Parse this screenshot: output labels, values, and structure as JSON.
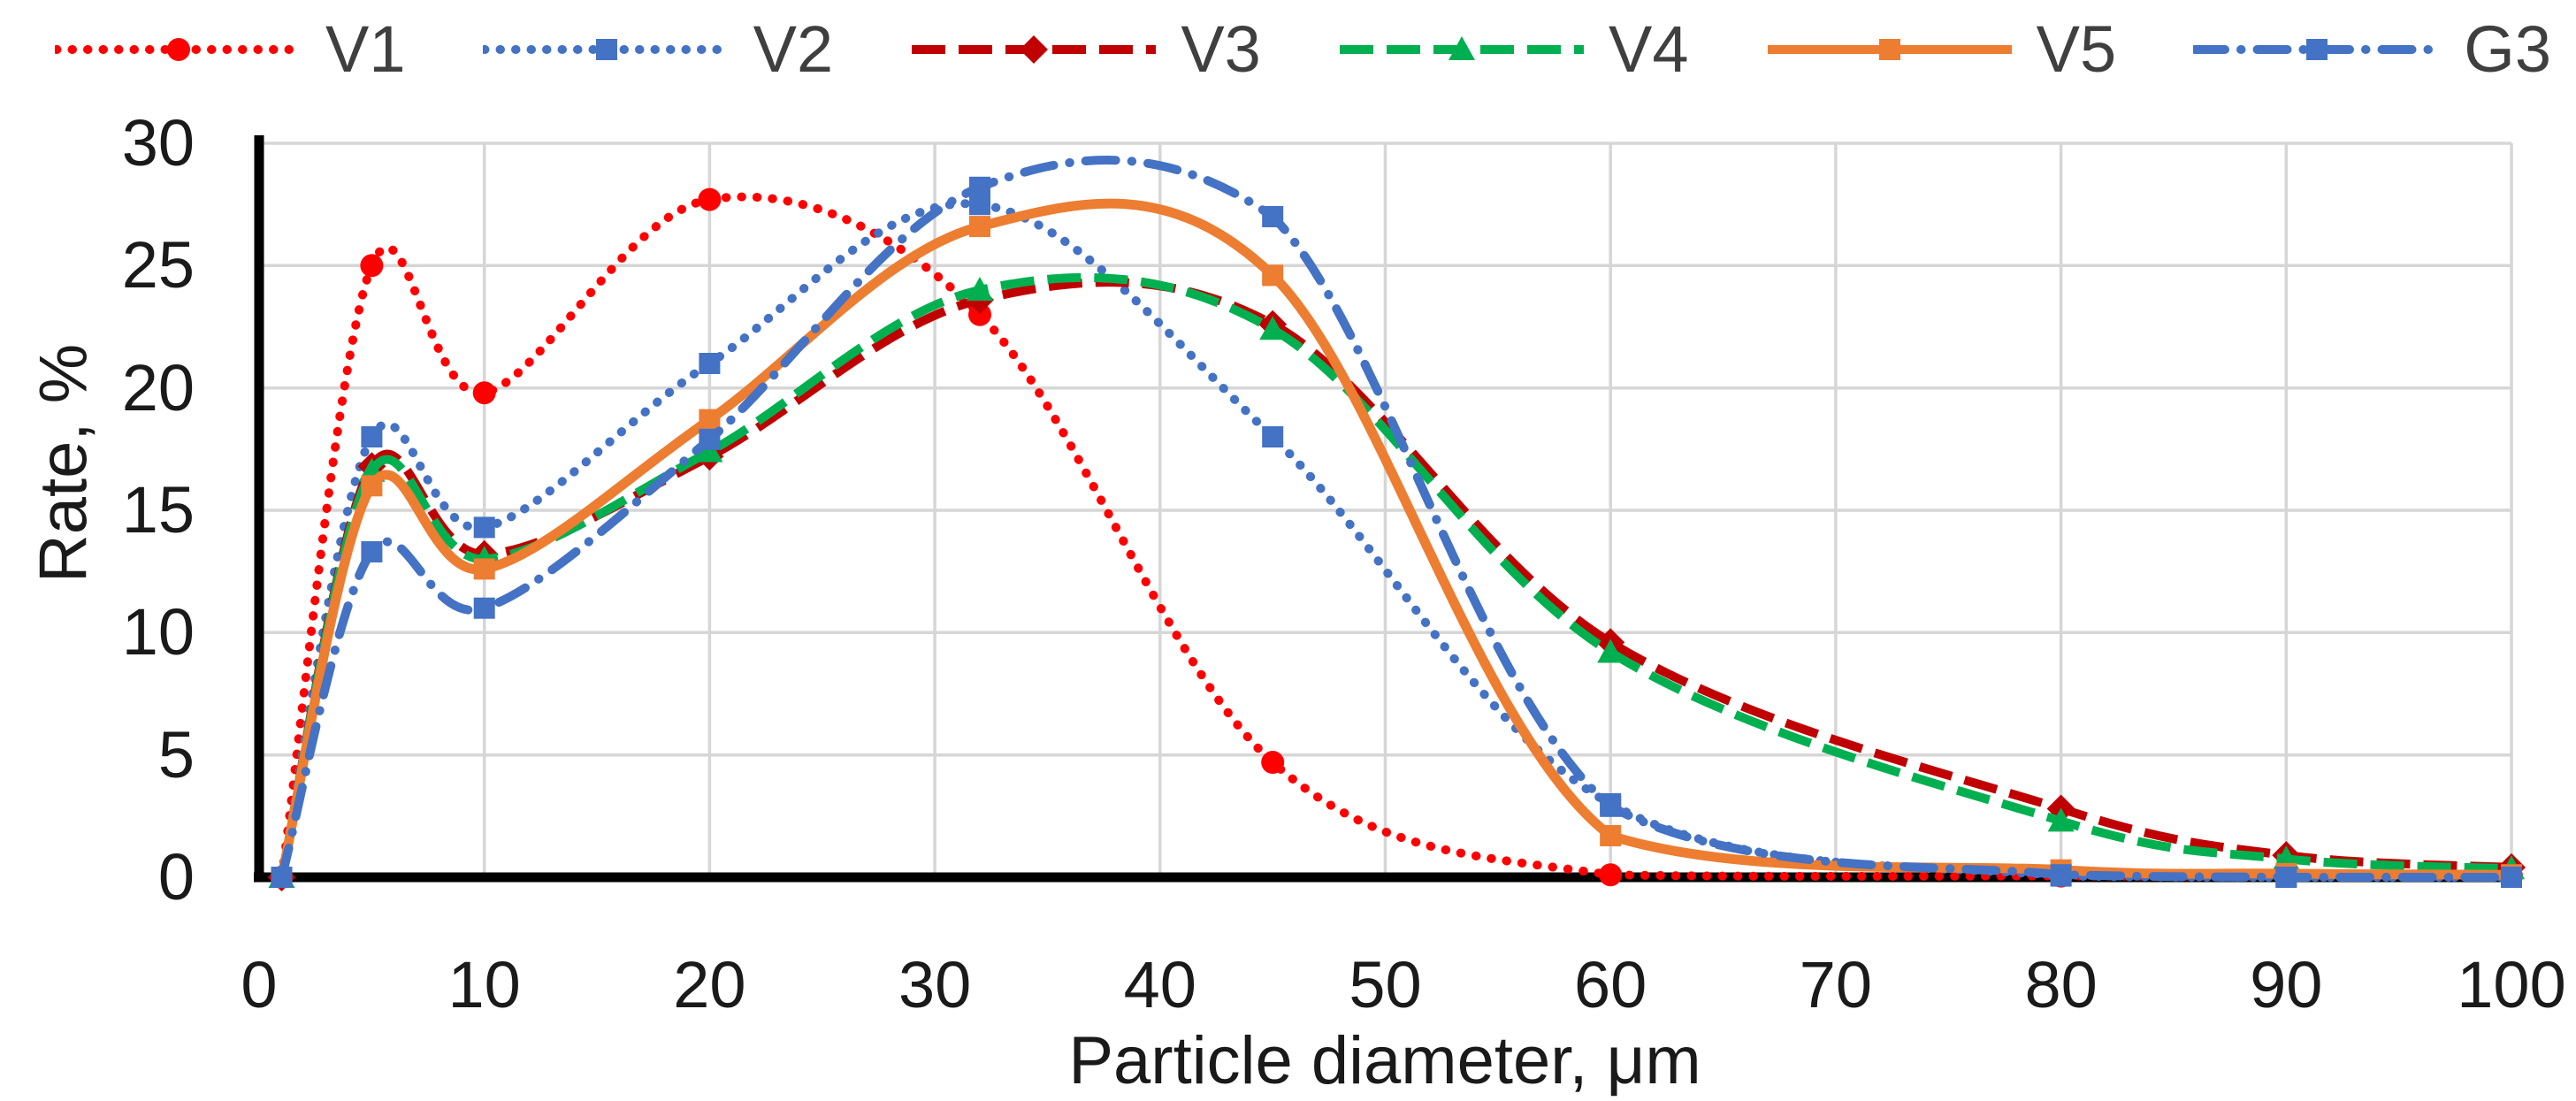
{
  "chart_data": {
    "type": "line",
    "title": "",
    "xlabel": "Particle diameter, μm",
    "ylabel": "Rate, %",
    "xlim": [
      0,
      100
    ],
    "ylim": [
      0,
      30
    ],
    "x_ticks": [
      0,
      10,
      20,
      30,
      40,
      50,
      60,
      70,
      80,
      90,
      100
    ],
    "y_ticks": [
      0,
      5,
      10,
      15,
      20,
      25,
      30
    ],
    "grid": true,
    "legend_position": "top",
    "x": [
      1,
      5,
      10,
      20,
      32,
      45,
      60,
      80,
      90,
      100
    ],
    "series": [
      {
        "name": "V1",
        "color": "#FF0000",
        "line_style": "dotted",
        "marker": "circle",
        "values": [
          0,
          25.0,
          19.8,
          27.7,
          23.0,
          4.7,
          0.1,
          0.05,
          0.05,
          0.05
        ]
      },
      {
        "name": "V2",
        "color": "#4472C4",
        "line_style": "dotted",
        "marker": "square",
        "values": [
          0,
          18.0,
          14.3,
          21.0,
          27.5,
          18.0,
          3.0,
          0.05,
          0.0,
          0.0
        ]
      },
      {
        "name": "V3",
        "color": "#C00000",
        "line_style": "dashed",
        "marker": "diamond",
        "values": [
          0,
          16.8,
          13.2,
          17.2,
          23.6,
          22.6,
          9.6,
          2.8,
          0.9,
          0.4
        ]
      },
      {
        "name": "V4",
        "color": "#00B050",
        "line_style": "dashed",
        "marker": "triangle",
        "values": [
          0,
          16.6,
          13.0,
          17.4,
          24.0,
          22.4,
          9.2,
          2.3,
          0.75,
          0.35
        ]
      },
      {
        "name": "V5",
        "color": "#ED7D31",
        "line_style": "solid",
        "marker": "square",
        "values": [
          0,
          16.0,
          12.6,
          18.7,
          26.6,
          24.6,
          1.7,
          0.3,
          0.15,
          0.1
        ]
      },
      {
        "name": "G3",
        "color": "#4472C4",
        "line_style": "dash-dot",
        "marker": "square",
        "values": [
          0,
          13.3,
          11.0,
          17.9,
          28.2,
          27.0,
          2.9,
          0.1,
          0.0,
          0.0
        ]
      }
    ]
  },
  "colors": {
    "background": "#FFFFFF",
    "axis": "#000000",
    "gridline": "#D6D6D6",
    "tick_text": "#1A1A1A",
    "legend_text": "#3F3F3F"
  }
}
